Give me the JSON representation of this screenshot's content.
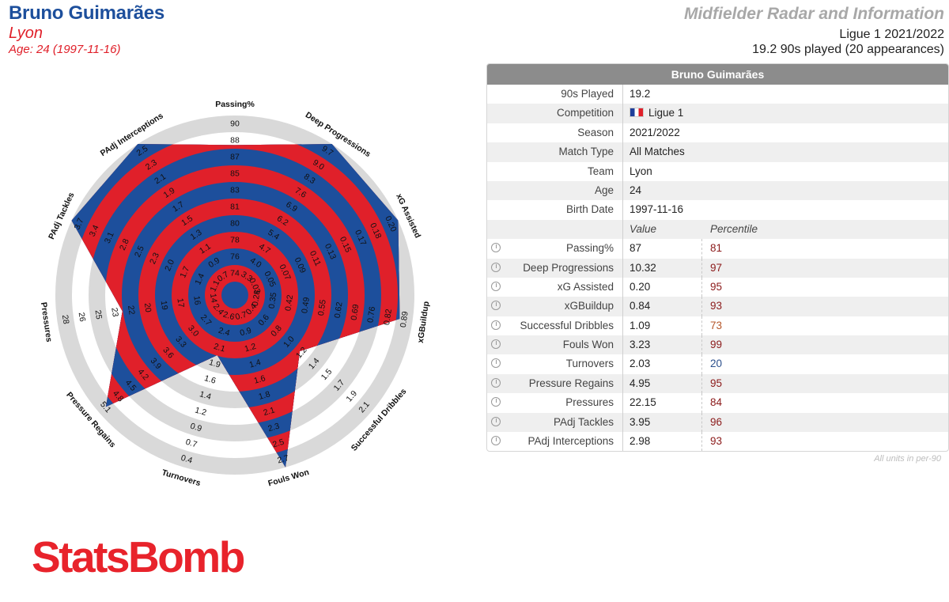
{
  "header": {
    "player": "Bruno Guimarães",
    "team": "Lyon",
    "age_line": "Age: 24 (1997-11-16)",
    "title": "Midfielder Radar and Information",
    "league_season": "Ligue 1 2021/2022",
    "played": "19.2 90s played (20 appearances)"
  },
  "colors": {
    "blue": "#1d4f9c",
    "red": "#e0202a",
    "ring": "#d9d9d9",
    "header_gray": "#8c8c8c",
    "brand_red": "#e8232b"
  },
  "chart_data": {
    "type": "radar",
    "axes": [
      {
        "name": "Passing%",
        "ticks": [
          "74",
          "76",
          "78",
          "80",
          "81",
          "83",
          "85",
          "87",
          "88",
          "90"
        ],
        "value": 87,
        "percentile": 81
      },
      {
        "name": "Deep Progressions",
        "ticks": [
          "3.3",
          "4.0",
          "4.7",
          "5.4",
          "6.2",
          "6.9",
          "7.6",
          "8.3",
          "9.0",
          "9.7"
        ],
        "value": 10.32,
        "percentile": 97
      },
      {
        "name": "xG Assisted",
        "ticks": [
          "0.03",
          "0.05",
          "0.07",
          "0.09",
          "0.11",
          "0.13",
          "0.15",
          "0.17",
          "0.18",
          "0.20"
        ],
        "value": 0.2,
        "percentile": 95
      },
      {
        "name": "xGBuildup",
        "ticks": [
          "0.28",
          "0.35",
          "0.42",
          "0.49",
          "0.55",
          "0.62",
          "0.69",
          "0.76",
          "0.82",
          "0.89"
        ],
        "value": 0.84,
        "percentile": 93
      },
      {
        "name": "Successful Dribbles",
        "ticks": [
          "0.4",
          "0.6",
          "0.8",
          "1.0",
          "1.2",
          "1.4",
          "1.5",
          "1.7",
          "1.9",
          "2.1"
        ],
        "value": 1.09,
        "percentile": 73
      },
      {
        "name": "Fouls Won",
        "ticks": [
          "0.7",
          "0.9",
          "1.2",
          "1.4",
          "1.6",
          "1.8",
          "2.1",
          "2.3",
          "2.5",
          "2.7"
        ],
        "value": 3.23,
        "percentile": 99
      },
      {
        "name": "Turnovers",
        "ticks": [
          "2.6",
          "2.4",
          "2.1",
          "1.9",
          "1.6",
          "1.4",
          "1.2",
          "0.9",
          "0.7",
          "0.4"
        ],
        "value": 2.03,
        "percentile": 20
      },
      {
        "name": "Pressure Regains",
        "ticks": [
          "2.4",
          "2.7",
          "3.0",
          "3.3",
          "3.6",
          "3.9",
          "4.2",
          "4.5",
          "4.8",
          "5.1"
        ],
        "value": 4.95,
        "percentile": 95
      },
      {
        "name": "Pressures",
        "ticks": [
          "14",
          "16",
          "17",
          "19",
          "20",
          "22",
          "23",
          "25",
          "26",
          "28"
        ],
        "value": 22.15,
        "percentile": 84
      },
      {
        "name": "PAdj Tackles",
        "ticks": [
          "1.1",
          "1.4",
          "1.7",
          "2.0",
          "2.3",
          "2.5",
          "2.8",
          "3.1",
          "3.4",
          "3.7"
        ],
        "value": 3.95,
        "percentile": 96
      },
      {
        "name": "PAdj Interceptions",
        "ticks": [
          "0.7",
          "0.9",
          "1.1",
          "1.3",
          "1.5",
          "1.7",
          "1.9",
          "2.1",
          "2.3",
          "2.5"
        ],
        "value": 2.98,
        "percentile": 93
      }
    ]
  },
  "table": {
    "header": "Bruno Guimarães",
    "info": [
      {
        "label": "90s Played",
        "value": "19.2"
      },
      {
        "label": "Competition",
        "value": "Ligue 1",
        "flag": true
      },
      {
        "label": "Season",
        "value": "2021/2022"
      },
      {
        "label": "Match Type",
        "value": "All Matches"
      },
      {
        "label": "Team",
        "value": "Lyon"
      },
      {
        "label": "Age",
        "value": "24"
      },
      {
        "label": "Birth Date",
        "value": "1997-11-16"
      }
    ],
    "col_value": "Value",
    "col_percentile": "Percentile",
    "metrics": [
      {
        "label": "Passing%",
        "value": "87",
        "percentile": "81",
        "pct_color": "#8b1a1a"
      },
      {
        "label": "Deep Progressions",
        "value": "10.32",
        "percentile": "97",
        "pct_color": "#8b1a1a"
      },
      {
        "label": "xG Assisted",
        "value": "0.20",
        "percentile": "95",
        "pct_color": "#8b1a1a"
      },
      {
        "label": "xGBuildup",
        "value": "0.84",
        "percentile": "93",
        "pct_color": "#8b1a1a"
      },
      {
        "label": "Successful Dribbles",
        "value": "1.09",
        "percentile": "73",
        "pct_color": "#b5572a"
      },
      {
        "label": "Fouls Won",
        "value": "3.23",
        "percentile": "99",
        "pct_color": "#8b1a1a"
      },
      {
        "label": "Turnovers",
        "value": "2.03",
        "percentile": "20",
        "pct_color": "#2b4f8c"
      },
      {
        "label": "Pressure Regains",
        "value": "4.95",
        "percentile": "95",
        "pct_color": "#8b1a1a"
      },
      {
        "label": "Pressures",
        "value": "22.15",
        "percentile": "84",
        "pct_color": "#8b1a1a"
      },
      {
        "label": "PAdj Tackles",
        "value": "3.95",
        "percentile": "96",
        "pct_color": "#8b1a1a"
      },
      {
        "label": "PAdj Interceptions",
        "value": "2.98",
        "percentile": "93",
        "pct_color": "#8b1a1a"
      }
    ],
    "units_note": "All units in per-90"
  },
  "brand": "StatsBomb"
}
